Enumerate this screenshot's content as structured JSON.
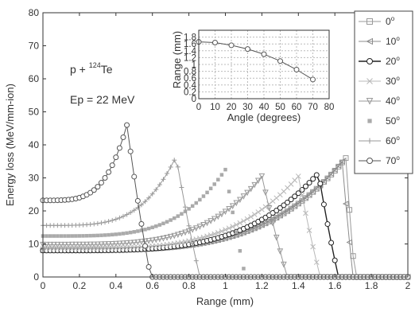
{
  "chart_data": [
    {
      "type": "line",
      "xlabel": "Range (mm)",
      "ylabel": "Energy loss (MeV/mm-ion)",
      "xlim": [
        0,
        2
      ],
      "ylim": [
        0,
        80
      ],
      "xticks": [
        0,
        0.2,
        0.4,
        0.6,
        0.8,
        1,
        1.2,
        1.4,
        1.6,
        1.8,
        2
      ],
      "yticks": [
        0,
        10,
        20,
        30,
        40,
        50,
        60,
        70,
        80
      ],
      "xtick_labels": [
        "0",
        "0.2",
        "0.4",
        "0.6",
        "0.8",
        "1",
        "1.2",
        "1.4",
        "1.6",
        "1.8",
        "2"
      ],
      "ytick_labels": [
        "0",
        "10",
        "20",
        "30",
        "40",
        "50",
        "60",
        "70",
        "80"
      ],
      "grid": false,
      "legend_position": "right",
      "annotations": [
        {
          "text_prefix": "p + ",
          "mass": "124",
          "element": "Te",
          "x": 0.17,
          "y": 66
        },
        {
          "text": "Ep = 22 MeV",
          "x": 0.17,
          "y": 57
        }
      ],
      "series": [
        {
          "name": "0",
          "marker": "square",
          "color": "#9a9a9a",
          "start": 8.1,
          "peak_x": 1.66,
          "peak_y": 36,
          "end_x": 1.71
        },
        {
          "name": "10",
          "marker": "triangle-left",
          "color": "#8c8c8c",
          "start": 8.1,
          "peak_x": 1.64,
          "peak_y": 35,
          "end_x": 1.7
        },
        {
          "name": "20",
          "marker": "circle",
          "color": "#222222",
          "start": 8.0,
          "peak_x": 1.51,
          "peak_y": 31.5,
          "end_x": 1.62
        },
        {
          "name": "30",
          "marker": "x",
          "color": "#b8b8b8",
          "start": 8.6,
          "peak_x": 1.4,
          "peak_y": 30.5,
          "end_x": 1.52
        },
        {
          "name": "40",
          "marker": "triangle-down",
          "color": "#999999",
          "start": 9.8,
          "peak_x": 1.2,
          "peak_y": 30.5,
          "end_x": 1.34
        },
        {
          "name": "50",
          "marker": "asterisk",
          "color": "#aaaaaa",
          "start": 12.4,
          "peak_x": 1.0,
          "peak_y": 32.5,
          "end_x": 1.11
        },
        {
          "name": "60",
          "marker": "plus",
          "color": "#999999",
          "start": 15.6,
          "peak_x": 0.73,
          "peak_y": 36.5,
          "end_x": 0.86
        },
        {
          "name": "70",
          "marker": "circle",
          "color": "#555555",
          "start": 23.2,
          "peak_x": 0.46,
          "peak_y": 46,
          "end_x": 0.59
        }
      ]
    },
    {
      "type": "line",
      "xlabel": "Angle (degrees)",
      "ylabel": "Range (mm)",
      "xlim": [
        0,
        80
      ],
      "ylim": [
        0,
        2
      ],
      "xticks": [
        0,
        10,
        20,
        30,
        40,
        50,
        60,
        70,
        80
      ],
      "yticks": [
        0,
        0.2,
        0.4,
        0.6,
        0.8,
        1,
        1.2,
        1.4,
        1.6,
        1.8
      ],
      "xtick_labels": [
        "0",
        "10",
        "20",
        "30",
        "40",
        "50",
        "60",
        "70",
        "80"
      ],
      "ytick_labels": [
        "0",
        "0.2",
        "0.4",
        "0.6",
        "0.8",
        "1",
        "1.2",
        "1.4",
        "1.6",
        "1.8"
      ],
      "grid": true,
      "x": [
        0,
        10,
        20,
        30,
        40,
        50,
        60,
        70
      ],
      "y": [
        1.66,
        1.64,
        1.56,
        1.45,
        1.3,
        1.1,
        0.85,
        0.56
      ]
    }
  ]
}
